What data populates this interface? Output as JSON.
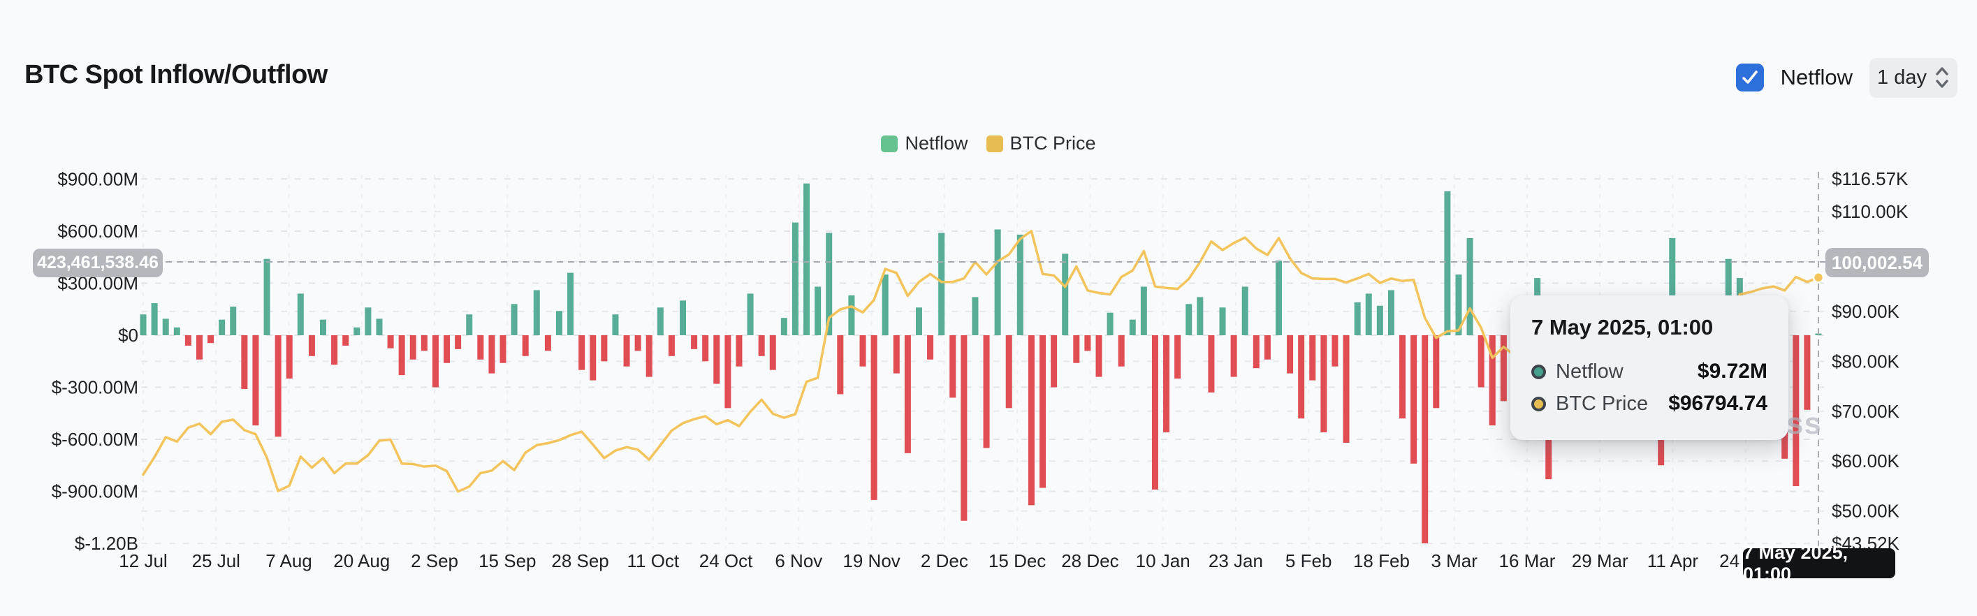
{
  "header": {
    "title": "BTC Spot Inflow/Outflow",
    "netflow_toggle": {
      "label": "Netflow",
      "checked": true,
      "checkbox_color": "#2d6fdb"
    },
    "interval_select": {
      "value": "1 day"
    }
  },
  "legend": {
    "items": [
      {
        "label": "Netflow",
        "color": "#66c28f"
      },
      {
        "label": "BTC Price",
        "color": "#e7bd52"
      }
    ]
  },
  "tooltip": {
    "date": "7 May 2025, 01:00",
    "rows": [
      {
        "label": "Netflow",
        "value": "$9.72M",
        "marker_color": "#46a18a"
      },
      {
        "label": "BTC Price",
        "value": "$96794.74",
        "marker_color": "#e7bd52"
      }
    ]
  },
  "crosshair": {
    "left_axis_value": "423,461,538.46",
    "right_axis_value": "100,002.54",
    "x_axis_value": "7 May 2025, 01:00"
  },
  "watermark": "Coinglass",
  "chart_data": {
    "type": "bar",
    "title": "BTC Spot Inflow/Outflow",
    "legend_position": "top-center",
    "grid": true,
    "x": {
      "start": "12 Jul 2024",
      "end": "7 May 2025, 01:00",
      "sample_interval_days": 2,
      "tick_labels": [
        "12 Jul",
        "25 Jul",
        "7 Aug",
        "20 Aug",
        "2 Sep",
        "15 Sep",
        "28 Sep",
        "11 Oct",
        "24 Oct",
        "6 Nov",
        "19 Nov",
        "2 Dec",
        "15 Dec",
        "28 Dec",
        "10 Jan",
        "23 Jan",
        "5 Feb",
        "18 Feb",
        "3 Mar",
        "16 Mar",
        "29 Mar",
        "11 Apr",
        "24 Apr"
      ],
      "tick_day_offsets": [
        0,
        13,
        26,
        39,
        52,
        65,
        78,
        91,
        104,
        117,
        130,
        143,
        156,
        169,
        182,
        195,
        208,
        221,
        234,
        247,
        260,
        273,
        286
      ],
      "total_days": 299
    },
    "left_axis": {
      "title": "Netflow",
      "tick_labels": [
        "$900.00M",
        "$600.00M",
        "$300.00M",
        "$0",
        "$-300.00M",
        "$-600.00M",
        "$-900.00M",
        "$-1.20B"
      ],
      "tick_values_m": [
        900,
        600,
        300,
        0,
        -300,
        -600,
        -900,
        -1200
      ]
    },
    "right_axis": {
      "title": "BTC Price",
      "tick_labels": [
        "$116.57K",
        "$110.00K",
        "$90.00K",
        "$80.00K",
        "$70.00K",
        "$60.00K",
        "$50.00K",
        "$43.52K"
      ],
      "tick_values_k": [
        116.57,
        110,
        90,
        80,
        70,
        60,
        50,
        43.52
      ],
      "hidden_tick_behind_badge": {
        "label": "$100.00K",
        "value_k": 100
      },
      "range_k": [
        43.52,
        116.57
      ]
    },
    "series": [
      {
        "name": "Netflow",
        "type": "bar",
        "axis": "left",
        "unit": "USD millions",
        "color_positive": "#57ad96",
        "color_negative": "#e04d52",
        "values": [
          120,
          185,
          95,
          45,
          -60,
          -140,
          -45,
          90,
          165,
          -310,
          -520,
          440,
          -585,
          -250,
          240,
          -120,
          90,
          -170,
          -60,
          45,
          160,
          95,
          -75,
          -230,
          -140,
          -90,
          -300,
          -160,
          -80,
          120,
          -140,
          -220,
          -160,
          180,
          -120,
          260,
          -90,
          140,
          360,
          -200,
          -260,
          -150,
          120,
          -180,
          -90,
          -240,
          160,
          -120,
          200,
          -80,
          -150,
          -280,
          -420,
          -180,
          240,
          -120,
          -200,
          100,
          650,
          875,
          280,
          590,
          -340,
          230,
          -180,
          -950,
          350,
          -220,
          -680,
          160,
          -140,
          590,
          -360,
          -1070,
          220,
          -650,
          610,
          -420,
          580,
          -980,
          -880,
          -300,
          470,
          -160,
          -90,
          -240,
          130,
          -180,
          90,
          280,
          -890,
          -560,
          -250,
          180,
          220,
          -330,
          160,
          -240,
          280,
          -190,
          -140,
          430,
          -220,
          -480,
          -260,
          -560,
          -180,
          -620,
          190,
          240,
          170,
          260,
          -480,
          -740,
          -1200,
          -420,
          830,
          350,
          560,
          -300,
          -520,
          -380,
          180,
          -240,
          330,
          -830,
          -420,
          -90,
          220,
          -130,
          -560,
          -240,
          180,
          -420,
          -380,
          -750,
          560,
          210,
          -260,
          150,
          140,
          440,
          330,
          -190,
          -260,
          -330,
          -712,
          -870,
          -430,
          9.72
        ]
      },
      {
        "name": "BTC Price",
        "type": "line",
        "axis": "right",
        "unit": "USD",
        "color": "#f4c45c",
        "values": [
          57300,
          60800,
          64800,
          63900,
          66700,
          67500,
          65400,
          67900,
          68300,
          66200,
          65400,
          60700,
          54000,
          55100,
          60900,
          58700,
          60600,
          57600,
          59500,
          59500,
          61200,
          64100,
          64300,
          59500,
          59400,
          58900,
          59100,
          58000,
          53900,
          54900,
          57600,
          58100,
          60000,
          58200,
          61700,
          63200,
          63600,
          64200,
          65200,
          65900,
          63300,
          60600,
          62100,
          62800,
          62300,
          60300,
          63200,
          66100,
          67600,
          68400,
          69000,
          67400,
          68200,
          67000,
          69900,
          72300,
          69500,
          68700,
          69400,
          75900,
          76700,
          88700,
          90400,
          91000,
          89800,
          92300,
          98500,
          97700,
          93100,
          95900,
          97500,
          95900,
          95900,
          96600,
          99900,
          97400,
          100000,
          101400,
          104500,
          106100,
          97500,
          97200,
          94900,
          99000,
          94200,
          93700,
          93400,
          96900,
          98200,
          102100,
          95000,
          94700,
          94500,
          96500,
          99900,
          104000,
          102300,
          103700,
          104800,
          102600,
          101300,
          104700,
          100600,
          97700,
          96600,
          96500,
          96500,
          95800,
          96600,
          97500,
          95700,
          96600,
          96100,
          96300,
          88700,
          84700,
          86000,
          86200,
          90600,
          86700,
          80700,
          82900,
          81100,
          84300,
          84100,
          86900,
          84200,
          86100,
          87500,
          87200,
          82600,
          82500,
          85200,
          83800,
          78200,
          76300,
          79600,
          85300,
          84500,
          84000,
          84500,
          85200,
          93400,
          93900,
          94600,
          95000,
          94200,
          96900,
          95900,
          96794.74
        ]
      }
    ],
    "crosshair_point": {
      "date": "7 May 2025, 01:00",
      "netflow": "$9.72M",
      "btc_price_usd": 96794.74
    }
  }
}
